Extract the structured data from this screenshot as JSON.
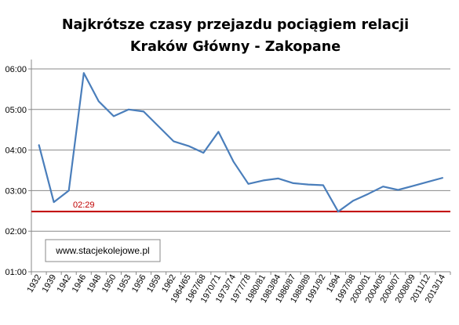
{
  "chart_data": {
    "type": "line",
    "title_lines": [
      "Najkrótsze czasy przejazdu pociągiem relacji",
      "Kraków Główny - Zakopane"
    ],
    "xlabel": "",
    "ylabel": "",
    "ylim_minutes": [
      60,
      360
    ],
    "y_ticks": [
      "01:00",
      "02:00",
      "03:00",
      "04:00",
      "05:00",
      "06:00"
    ],
    "categories": [
      "1932",
      "1939",
      "1942",
      "1946",
      "1948",
      "1950",
      "1953",
      "1956",
      "1959",
      "1962",
      "1964/65",
      "1967/68",
      "1970/71",
      "1973/74",
      "1977/78",
      "1980/81",
      "1983/84",
      "1986/87",
      "1988/89",
      "1991/92",
      "1994",
      "1997/98",
      "2000/01",
      "2004/05",
      "2006/07",
      "2008/09",
      "2011/12",
      "2013/14"
    ],
    "series": [
      {
        "name": "",
        "color": "#4a7ebb",
        "values_minutes": [
          248,
          163,
          180,
          354,
          312,
          290,
          300,
          297,
          275,
          253,
          246,
          236,
          267,
          223,
          190,
          195,
          198,
          191,
          189,
          188,
          149,
          165,
          175,
          186,
          181,
          187,
          193,
          199
        ]
      }
    ],
    "reference_line": {
      "value_minutes": 149,
      "label": "02:29",
      "color": "#c00000"
    },
    "grid": "horizontal",
    "legend": "none"
  },
  "watermark": {
    "text": "www.stacjekolejowe.pl"
  }
}
